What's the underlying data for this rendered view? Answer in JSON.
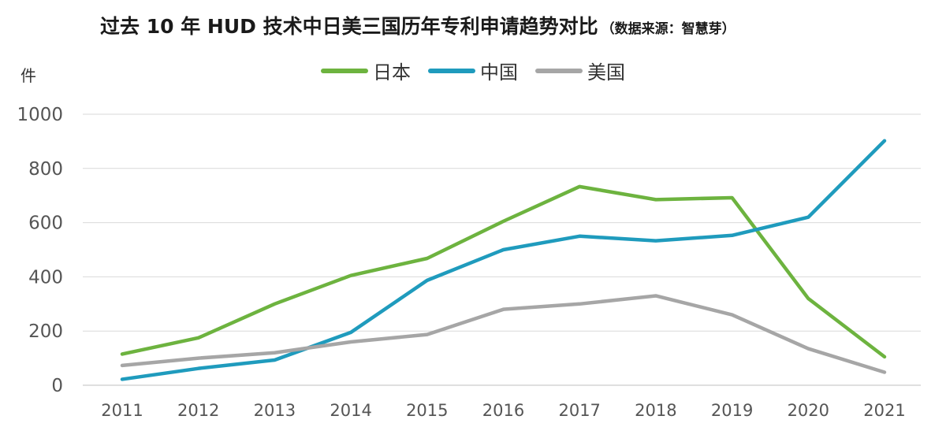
{
  "chart_data": {
    "type": "line",
    "title": "过去 10 年 HUD 技术中日美三国历年专利申请趋势对比",
    "subtitle": "（数据来源：智慧芽）",
    "ylabel": "件",
    "xlabel": "",
    "ylim": [
      0,
      1000
    ],
    "yticks": [
      0,
      200,
      400,
      600,
      800,
      1000
    ],
    "grid": true,
    "legend_position": "top-center",
    "categories": [
      "2011",
      "2012",
      "2013",
      "2014",
      "2015",
      "2016",
      "2017",
      "2018",
      "2019",
      "2020",
      "2021"
    ],
    "series": [
      {
        "name": "日本",
        "color": "#6db33f",
        "values": [
          115,
          175,
          300,
          405,
          468,
          605,
          733,
          685,
          692,
          320,
          105
        ]
      },
      {
        "name": "中国",
        "color": "#1f9bbd",
        "values": [
          22,
          62,
          93,
          195,
          387,
          500,
          550,
          533,
          553,
          620,
          902
        ]
      },
      {
        "name": "美国",
        "color": "#a6a6a6",
        "values": [
          73,
          100,
          120,
          160,
          187,
          280,
          300,
          330,
          260,
          135,
          48
        ]
      }
    ]
  }
}
